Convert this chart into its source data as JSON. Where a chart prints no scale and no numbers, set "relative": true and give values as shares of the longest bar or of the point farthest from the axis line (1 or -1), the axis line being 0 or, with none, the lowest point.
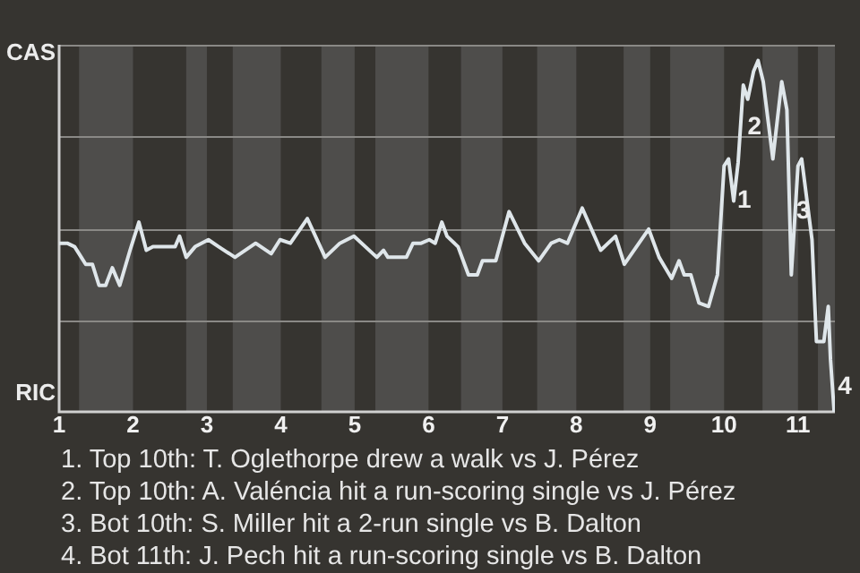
{
  "chart_data": {
    "type": "line",
    "x": [
      1.0,
      1.11,
      1.21,
      1.3,
      1.36,
      1.45,
      1.54,
      1.63,
      1.72,
      1.82,
      1.96,
      2.08,
      2.18,
      2.27,
      2.57,
      2.63,
      2.72,
      2.84,
      3.02,
      3.16,
      3.38,
      3.66,
      3.87,
      3.99,
      4.13,
      4.36,
      4.6,
      4.8,
      4.99,
      5.3,
      5.39,
      5.45,
      5.7,
      5.79,
      5.9,
      6.01,
      6.09,
      6.18,
      6.25,
      6.4,
      6.54,
      6.66,
      6.73,
      6.91,
      7.09,
      7.3,
      7.49,
      7.66,
      7.77,
      7.88,
      8.08,
      8.33,
      8.53,
      8.65,
      8.98,
      9.12,
      9.29,
      9.39,
      9.46,
      9.55,
      9.66,
      9.79,
      9.91,
      10.0,
      10.06,
      10.13,
      10.19,
      10.26,
      10.32,
      10.4,
      10.46,
      10.53,
      10.66,
      10.78,
      10.85,
      10.91,
      11.0,
      11.05,
      11.19,
      11.25,
      11.35,
      11.41,
      11.44,
      11.49
    ],
    "series": [
      {
        "color": "#dfe6ea",
        "values": [
          0.48,
          0.48,
          0.47,
          0.44,
          0.42,
          0.42,
          0.36,
          0.36,
          0.41,
          0.36,
          0.46,
          0.54,
          0.46,
          0.47,
          0.47,
          0.5,
          0.44,
          0.47,
          0.49,
          0.47,
          0.44,
          0.48,
          0.45,
          0.49,
          0.48,
          0.55,
          0.44,
          0.48,
          0.5,
          0.44,
          0.46,
          0.44,
          0.44,
          0.48,
          0.48,
          0.49,
          0.48,
          0.54,
          0.5,
          0.47,
          0.39,
          0.39,
          0.43,
          0.43,
          0.57,
          0.48,
          0.43,
          0.48,
          0.49,
          0.48,
          0.58,
          0.46,
          0.5,
          0.42,
          0.52,
          0.44,
          0.38,
          0.43,
          0.39,
          0.39,
          0.31,
          0.3,
          0.39,
          0.7,
          0.72,
          0.6,
          0.71,
          0.93,
          0.89,
          0.97,
          1,
          0.94,
          0.72,
          0.94,
          0.86,
          0.39,
          0.7,
          0.72,
          0.49,
          0.2,
          0.2,
          0.3,
          0.15,
          0
        ]
      }
    ],
    "relative": true,
    "xlim": [
      1,
      11.5
    ],
    "xticks": [
      1,
      2,
      3,
      4,
      5,
      6,
      7,
      8,
      9,
      10,
      11
    ],
    "grid": "y",
    "legend": false,
    "marker": "none",
    "line_style": "solid",
    "bands": [
      {
        "axis": "x",
        "from": 1.27,
        "to": 2,
        "color": "#4e4d4b"
      },
      {
        "axis": "x",
        "from": 2.72,
        "to": 3,
        "color": "#4e4d4b"
      },
      {
        "axis": "x",
        "from": 3.35,
        "to": 4,
        "color": "#4e4d4b"
      },
      {
        "axis": "x",
        "from": 4.55,
        "to": 5,
        "color": "#4e4d4b"
      },
      {
        "axis": "x",
        "from": 5.28,
        "to": 6,
        "color": "#4e4d4b"
      },
      {
        "axis": "x",
        "from": 6.44,
        "to": 7,
        "color": "#4e4d4b"
      },
      {
        "axis": "x",
        "from": 7.47,
        "to": 8,
        "color": "#4e4d4b"
      },
      {
        "axis": "x",
        "from": 8.64,
        "to": 9,
        "color": "#4e4d4b"
      },
      {
        "axis": "x",
        "from": 9.27,
        "to": 10,
        "color": "#4e4d4b"
      },
      {
        "axis": "x",
        "from": 10.52,
        "to": 11,
        "color": "#4e4d4b"
      },
      {
        "axis": "x",
        "from": 11.27,
        "to": 11.5,
        "color": "#4e4d4b"
      }
    ],
    "annotations": [
      "CAS",
      "RIC",
      {
        "text": "1",
        "x": 10.13,
        "y": 0.6
      },
      {
        "text": "2",
        "x": 10.27,
        "y": 0.81
      },
      {
        "text": "3",
        "x": 10.93,
        "y": 0.57
      },
      {
        "text": "4",
        "x": 11.49,
        "y": 0.07
      },
      "1. Top 10th: T. Oglethorpe drew a walk vs J. Pérez",
      "2. Top 10th: A. Valéncia hit a run-scoring single vs J. Pérez",
      "3. Bot 10th: S. Miller hit a 2-run single vs B. Dalton",
      "4. Bot 11th: J. Pech hit a run-scoring single vs B. Dalton"
    ]
  }
}
